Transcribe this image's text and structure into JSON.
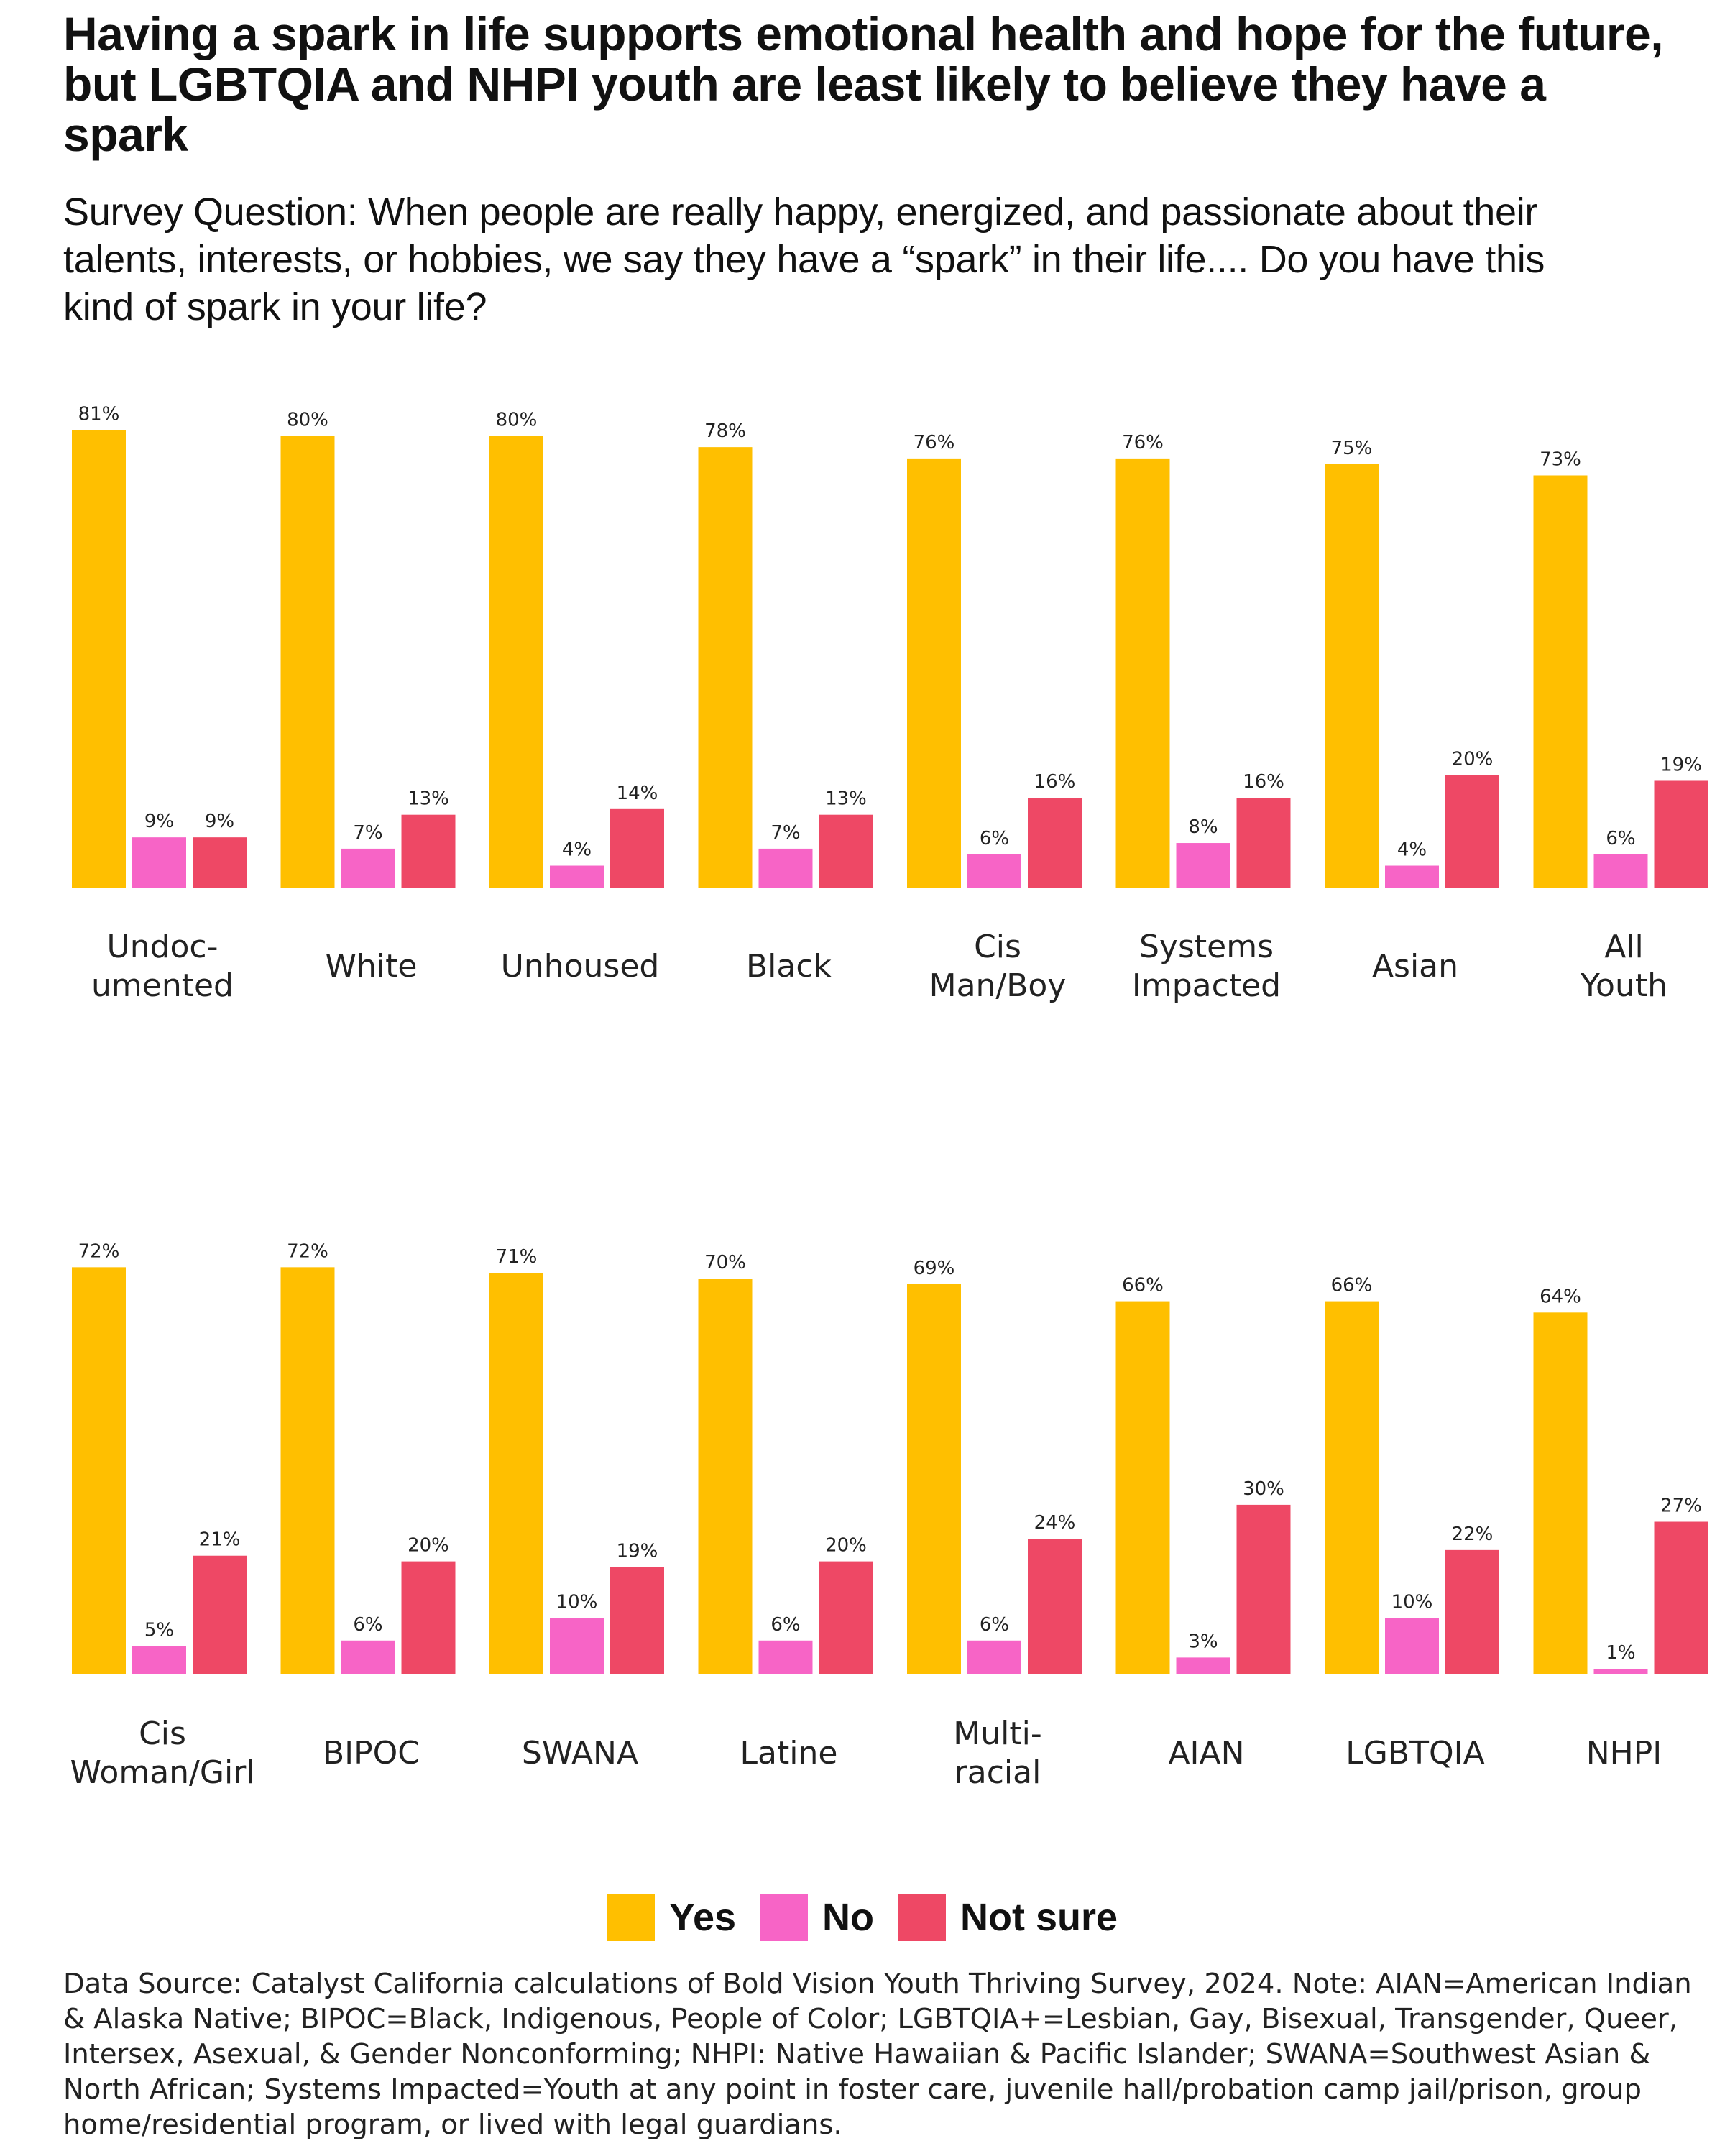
{
  "title": "Having a spark in life supports emotional health and hope for the future, but LGBTQIA and NHPI youth are least likely to believe they have a spark",
  "subtitle": "Survey Question: When people are really happy, energized, and passionate about their talents, interests, or hobbies, we say they have a “spark” in their life.... Do you have this kind of spark in your life?",
  "legend": [
    {
      "label": "Yes",
      "color": "#FFBF00"
    },
    {
      "label": "No",
      "color": "#F764C6"
    },
    {
      "label": "Not sure",
      "color": "#EE4865"
    }
  ],
  "source": "Data Source: Catalyst California calculations of Bold Vision Youth Thriving Survey, 2024. Note: AIAN=American Indian & Alaska Native; BIPOC=Black, Indigenous, People of Color; LGBTQIA+=Lesbian, Gay, Bisexual, Transgender, Queer, Intersex, Asexual, & Gender Nonconforming; NHPI: Native Hawaiian & Pacific Islander; SWANA=Southwest Asian & North African; Systems Impacted=Youth at any point in foster care, juvenile hall/probation camp jail/prison, group home/residential program, or lived with legal guardians.",
  "chart_data": [
    {
      "type": "bar",
      "categories": [
        [
          "Undoc-",
          "umented"
        ],
        [
          "White"
        ],
        [
          "Unhoused"
        ],
        [
          "Black"
        ],
        [
          "Cis",
          "Man/Boy"
        ],
        [
          "Systems",
          "Impacted"
        ],
        [
          "Asian"
        ],
        [
          "All",
          "Youth"
        ]
      ],
      "series": [
        {
          "name": "Yes",
          "color": "#FFBF00",
          "values": [
            81,
            80,
            80,
            78,
            76,
            76,
            75,
            73
          ]
        },
        {
          "name": "No",
          "color": "#F764C6",
          "values": [
            9,
            7,
            4,
            7,
            6,
            8,
            4,
            6
          ]
        },
        {
          "name": "Not sure",
          "color": "#EE4865",
          "values": [
            9,
            13,
            14,
            13,
            16,
            16,
            20,
            19
          ]
        }
      ],
      "ylim": [
        0,
        100
      ],
      "grid": false,
      "value_suffix": "%"
    },
    {
      "type": "bar",
      "categories": [
        [
          "Cis",
          "Woman/Girl"
        ],
        [
          "BIPOC"
        ],
        [
          "SWANA"
        ],
        [
          "Latine"
        ],
        [
          "Multi-",
          "racial"
        ],
        [
          "AIAN"
        ],
        [
          "LGBTQIA"
        ],
        [
          "NHPI"
        ]
      ],
      "series": [
        {
          "name": "Yes",
          "color": "#FFBF00",
          "values": [
            72,
            72,
            71,
            70,
            69,
            66,
            66,
            64
          ]
        },
        {
          "name": "No",
          "color": "#F764C6",
          "values": [
            5,
            6,
            10,
            6,
            6,
            3,
            10,
            1
          ]
        },
        {
          "name": "Not sure",
          "color": "#EE4865",
          "values": [
            21,
            20,
            19,
            20,
            24,
            30,
            22,
            27
          ]
        }
      ],
      "ylim": [
        0,
        100
      ],
      "grid": false,
      "value_suffix": "%"
    }
  ]
}
